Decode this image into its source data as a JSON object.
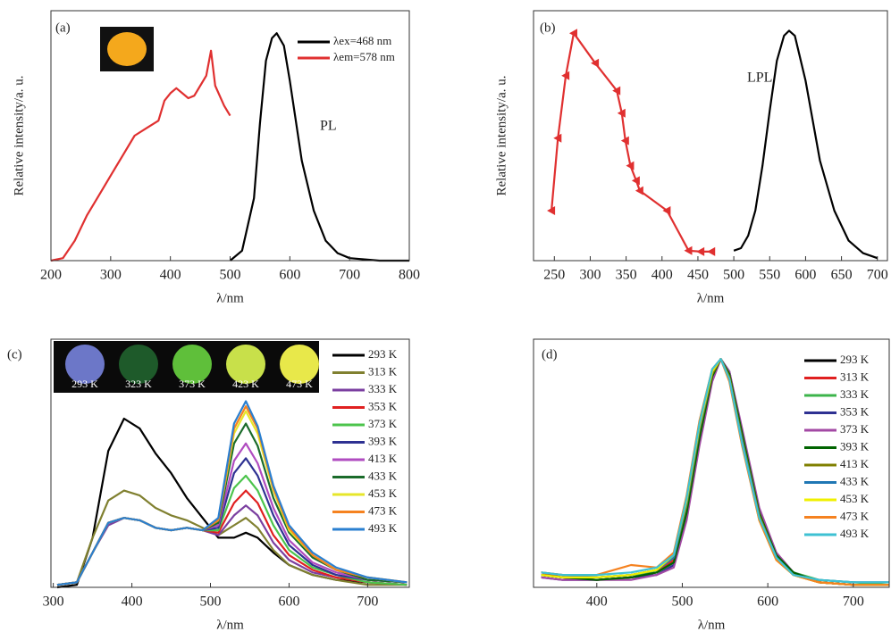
{
  "chart_data": [
    {
      "type": "line",
      "panel_label": "(a)",
      "xlabel": "λ/nm",
      "ylabel": "Relative intensity/a. u.",
      "xlim": [
        200,
        800
      ],
      "xticks": [
        200,
        300,
        400,
        500,
        600,
        700,
        800
      ],
      "ylim": [
        0,
        1
      ],
      "annotations": [
        "PL"
      ],
      "series": [
        {
          "name": "λex=468 nm",
          "color": "#000000",
          "x": [
            500,
            520,
            540,
            550,
            560,
            570,
            578,
            590,
            600,
            620,
            640,
            660,
            680,
            700,
            750,
            800
          ],
          "values": [
            0,
            0.04,
            0.25,
            0.55,
            0.8,
            0.89,
            0.91,
            0.86,
            0.72,
            0.4,
            0.2,
            0.08,
            0.03,
            0.01,
            0,
            0
          ]
        },
        {
          "name": "λem=578 nm",
          "color": "#e03030",
          "x": [
            200,
            220,
            240,
            260,
            280,
            300,
            320,
            340,
            360,
            380,
            390,
            400,
            410,
            420,
            430,
            440,
            450,
            460,
            468,
            475,
            490,
            500
          ],
          "values": [
            0,
            0.01,
            0.08,
            0.18,
            0.26,
            0.34,
            0.42,
            0.5,
            0.53,
            0.56,
            0.64,
            0.67,
            0.69,
            0.67,
            0.65,
            0.66,
            0.7,
            0.74,
            0.84,
            0.7,
            0.62,
            0.58
          ]
        }
      ]
    },
    {
      "type": "line",
      "panel_label": "(b)",
      "xlabel": "λ/nm",
      "ylabel": "Relative intensity/a. u.",
      "xlim": [
        221,
        714
      ],
      "xticks": [
        250,
        300,
        350,
        400,
        450,
        500,
        550,
        600,
        650,
        700
      ],
      "ylim": [
        0,
        1
      ],
      "annotations": [
        "LPL"
      ],
      "series": [
        {
          "color": "#e03030",
          "marker": "triangle",
          "x": [
            246,
            255,
            266,
            277,
            307,
            337,
            344,
            349,
            356,
            364,
            369,
            407,
            437,
            454,
            469
          ],
          "values": [
            0.2,
            0.49,
            0.74,
            0.91,
            0.79,
            0.68,
            0.59,
            0.48,
            0.38,
            0.32,
            0.28,
            0.2,
            0.04,
            0.036,
            0.036
          ]
        },
        {
          "color": "#000000",
          "x": [
            500,
            510,
            520,
            530,
            540,
            550,
            560,
            570,
            577,
            585,
            600,
            620,
            640,
            660,
            680,
            700
          ],
          "values": [
            0.04,
            0.05,
            0.1,
            0.2,
            0.38,
            0.6,
            0.8,
            0.9,
            0.92,
            0.9,
            0.72,
            0.4,
            0.2,
            0.08,
            0.03,
            0.01
          ]
        }
      ]
    },
    {
      "type": "line",
      "panel_label": "(c)",
      "xlabel": "λ/nm",
      "xlim": [
        297,
        753
      ],
      "xticks": [
        300,
        400,
        500,
        600,
        700
      ],
      "ylim": [
        0,
        1
      ],
      "inset_labels": [
        "293 K",
        "323 K",
        "373 K",
        "423 K",
        "473 K"
      ],
      "x": [
        305,
        330,
        350,
        370,
        390,
        410,
        430,
        450,
        470,
        490,
        510,
        530,
        545,
        560,
        580,
        600,
        630,
        660,
        700,
        750
      ],
      "series": [
        {
          "name": "293 K",
          "color": "#000000",
          "values": [
            0,
            0.01,
            0.2,
            0.55,
            0.68,
            0.64,
            0.54,
            0.46,
            0.36,
            0.28,
            0.2,
            0.2,
            0.22,
            0.2,
            0.14,
            0.09,
            0.05,
            0.03,
            0.02,
            0.01
          ]
        },
        {
          "name": "313 K",
          "color": "#808030",
          "values": [
            0.01,
            0.02,
            0.2,
            0.35,
            0.39,
            0.37,
            0.32,
            0.29,
            0.27,
            0.24,
            0.21,
            0.25,
            0.28,
            0.24,
            0.15,
            0.09,
            0.05,
            0.03,
            0.01,
            0.01
          ]
        },
        {
          "name": "333 K",
          "color": "#7b3fa0",
          "values": [
            0.01,
            0.02,
            0.14,
            0.25,
            0.28,
            0.27,
            0.24,
            0.23,
            0.24,
            0.23,
            0.21,
            0.29,
            0.33,
            0.29,
            0.18,
            0.11,
            0.06,
            0.04,
            0.02,
            0.01
          ]
        },
        {
          "name": "353 K",
          "color": "#e02020",
          "values": [
            0.01,
            0.02,
            0.14,
            0.26,
            0.28,
            0.27,
            0.24,
            0.23,
            0.24,
            0.23,
            0.22,
            0.34,
            0.39,
            0.34,
            0.21,
            0.13,
            0.07,
            0.04,
            0.02,
            0.01
          ]
        },
        {
          "name": "373 K",
          "color": "#4cc44c",
          "values": [
            0.01,
            0.02,
            0.14,
            0.26,
            0.28,
            0.27,
            0.24,
            0.23,
            0.24,
            0.23,
            0.23,
            0.4,
            0.45,
            0.39,
            0.25,
            0.15,
            0.08,
            0.05,
            0.02,
            0.01
          ]
        },
        {
          "name": "393 K",
          "color": "#2e3192",
          "values": [
            0.01,
            0.02,
            0.14,
            0.26,
            0.28,
            0.27,
            0.24,
            0.23,
            0.24,
            0.23,
            0.24,
            0.46,
            0.52,
            0.45,
            0.29,
            0.17,
            0.09,
            0.05,
            0.03,
            0.02
          ]
        },
        {
          "name": "413 K",
          "color": "#b04cc0",
          "values": [
            0.01,
            0.02,
            0.14,
            0.26,
            0.28,
            0.27,
            0.24,
            0.23,
            0.24,
            0.23,
            0.25,
            0.51,
            0.58,
            0.5,
            0.32,
            0.19,
            0.1,
            0.06,
            0.03,
            0.02
          ]
        },
        {
          "name": "433 K",
          "color": "#1a6b2a",
          "values": [
            0.01,
            0.02,
            0.14,
            0.26,
            0.28,
            0.27,
            0.24,
            0.23,
            0.24,
            0.23,
            0.26,
            0.58,
            0.66,
            0.57,
            0.36,
            0.22,
            0.12,
            0.07,
            0.03,
            0.02
          ]
        },
        {
          "name": "453 K",
          "color": "#e6e62a",
          "values": [
            0.01,
            0.02,
            0.14,
            0.26,
            0.28,
            0.27,
            0.24,
            0.23,
            0.24,
            0.23,
            0.27,
            0.62,
            0.71,
            0.62,
            0.39,
            0.23,
            0.13,
            0.07,
            0.04,
            0.02
          ]
        },
        {
          "name": "473 K",
          "color": "#f58220",
          "values": [
            0.01,
            0.02,
            0.14,
            0.26,
            0.28,
            0.27,
            0.24,
            0.23,
            0.24,
            0.23,
            0.27,
            0.64,
            0.73,
            0.64,
            0.4,
            0.24,
            0.13,
            0.07,
            0.04,
            0.02
          ]
        },
        {
          "name": "493 K",
          "color": "#2a7fd0",
          "values": [
            0.01,
            0.02,
            0.14,
            0.26,
            0.28,
            0.27,
            0.24,
            0.23,
            0.24,
            0.23,
            0.28,
            0.66,
            0.75,
            0.65,
            0.41,
            0.25,
            0.14,
            0.08,
            0.04,
            0.02
          ]
        }
      ]
    },
    {
      "type": "line",
      "panel_label": "(d)",
      "xlabel": "λ/nm",
      "xlim": [
        326,
        742
      ],
      "xticks": [
        400,
        500,
        600,
        700
      ],
      "ylim": [
        0,
        1
      ],
      "x": [
        335,
        360,
        400,
        440,
        470,
        490,
        505,
        520,
        535,
        545,
        555,
        570,
        590,
        610,
        630,
        660,
        700,
        742
      ],
      "series": [
        {
          "name": "293 K",
          "color": "#000000",
          "values": [
            0.05,
            0.04,
            0.03,
            0.04,
            0.06,
            0.1,
            0.3,
            0.6,
            0.85,
            0.92,
            0.86,
            0.62,
            0.3,
            0.13,
            0.06,
            0.02,
            0.01,
            0.01
          ]
        },
        {
          "name": "313 K",
          "color": "#e02020",
          "values": [
            0.06,
            0.04,
            0.03,
            0.04,
            0.06,
            0.11,
            0.32,
            0.62,
            0.86,
            0.92,
            0.85,
            0.6,
            0.28,
            0.12,
            0.05,
            0.02,
            0.01,
            0.01
          ]
        },
        {
          "name": "333 K",
          "color": "#3cb44b",
          "values": [
            0.05,
            0.04,
            0.04,
            0.05,
            0.06,
            0.1,
            0.31,
            0.61,
            0.85,
            0.92,
            0.86,
            0.61,
            0.29,
            0.12,
            0.06,
            0.03,
            0.02,
            0.01
          ]
        },
        {
          "name": "353 K",
          "color": "#2e3192",
          "values": [
            0.04,
            0.03,
            0.03,
            0.04,
            0.05,
            0.09,
            0.28,
            0.58,
            0.84,
            0.92,
            0.87,
            0.63,
            0.31,
            0.13,
            0.06,
            0.02,
            0.01,
            0.01
          ]
        },
        {
          "name": "373 K",
          "color": "#a349a4",
          "values": [
            0.04,
            0.03,
            0.03,
            0.03,
            0.05,
            0.08,
            0.27,
            0.57,
            0.83,
            0.92,
            0.87,
            0.64,
            0.32,
            0.14,
            0.06,
            0.02,
            0.01,
            0.01
          ]
        },
        {
          "name": "393 K",
          "color": "#006400",
          "values": [
            0.05,
            0.04,
            0.03,
            0.04,
            0.06,
            0.1,
            0.3,
            0.6,
            0.85,
            0.92,
            0.86,
            0.62,
            0.3,
            0.13,
            0.06,
            0.02,
            0.01,
            0.01
          ]
        },
        {
          "name": "413 K",
          "color": "#808000",
          "values": [
            0.05,
            0.04,
            0.04,
            0.05,
            0.07,
            0.12,
            0.33,
            0.63,
            0.86,
            0.92,
            0.85,
            0.6,
            0.29,
            0.12,
            0.05,
            0.02,
            0.01,
            0.01
          ]
        },
        {
          "name": "433 K",
          "color": "#1f77b4",
          "values": [
            0.06,
            0.05,
            0.04,
            0.05,
            0.07,
            0.12,
            0.34,
            0.64,
            0.87,
            0.92,
            0.84,
            0.59,
            0.28,
            0.12,
            0.05,
            0.03,
            0.02,
            0.02
          ]
        },
        {
          "name": "453 K",
          "color": "#f0f000",
          "values": [
            0.05,
            0.04,
            0.04,
            0.05,
            0.07,
            0.13,
            0.35,
            0.65,
            0.87,
            0.92,
            0.84,
            0.58,
            0.27,
            0.11,
            0.05,
            0.02,
            0.01,
            0.01
          ]
        },
        {
          "name": "473 K",
          "color": "#f58220",
          "values": [
            0.06,
            0.05,
            0.05,
            0.09,
            0.08,
            0.14,
            0.37,
            0.67,
            0.88,
            0.92,
            0.83,
            0.57,
            0.27,
            0.11,
            0.05,
            0.02,
            0.01,
            0.01
          ]
        },
        {
          "name": "493 K",
          "color": "#3ec1d3",
          "values": [
            0.06,
            0.05,
            0.05,
            0.06,
            0.08,
            0.13,
            0.36,
            0.66,
            0.88,
            0.92,
            0.84,
            0.58,
            0.28,
            0.12,
            0.05,
            0.03,
            0.02,
            0.02
          ]
        }
      ]
    }
  ]
}
